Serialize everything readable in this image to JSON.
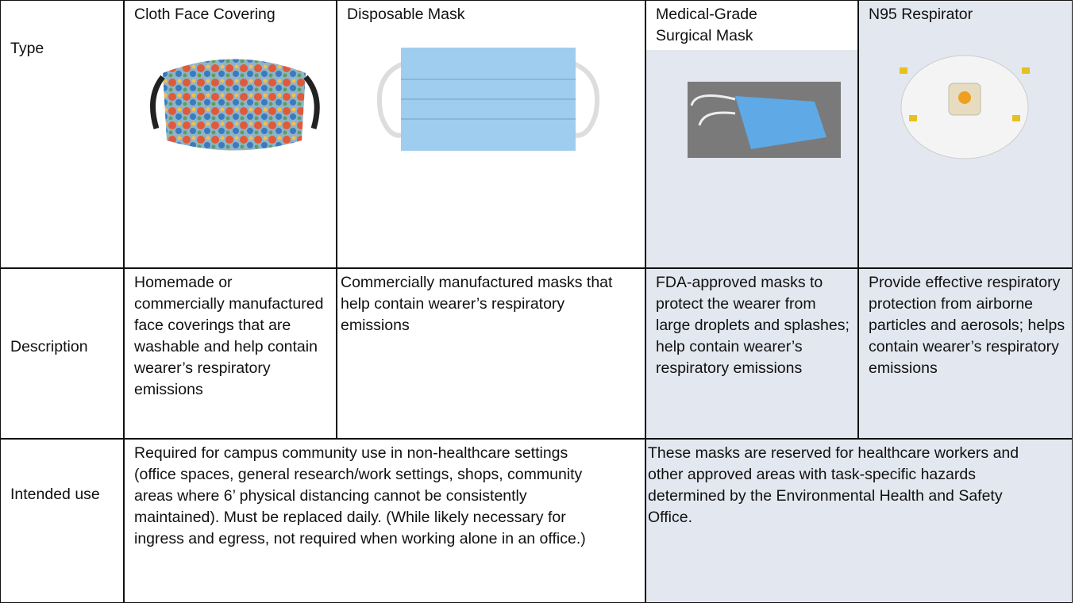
{
  "table": {
    "rows": [
      [
        "Type",
        "Cloth Face Covering",
        "Disposable Mask",
        "Medical-Grade Surgical Mask",
        "N95 Respirator"
      ],
      [
        "Description",
        "Homemade or commercially manufactured face coverings that are washable and help contain wearer’s respiratory emissions",
        "Commercially manufactured masks that help contain wearer’s respiratory emissions",
        "FDA-approved masks to protect the wearer from large droplets and splashes; help contain wearer’s respiratory emissions",
        "Provide effective respiratory protection from airborne particles and aerosols; helps contain wearer’s respiratory emissions"
      ],
      [
        "Intended use",
        "Required for campus community use in non-healthcare settings (office spaces, general research/work settings, shops, community areas where 6’ physical distancing cannot be consistently maintained). Must be replaced daily. (While likely necessary for ingress and egress, not required when working alone in an office.)",
        "These masks are reserved for healthcare workers and other approved areas with task-specific hazards determined by the Environmental Health and Safety Office."
      ]
    ]
  }
}
